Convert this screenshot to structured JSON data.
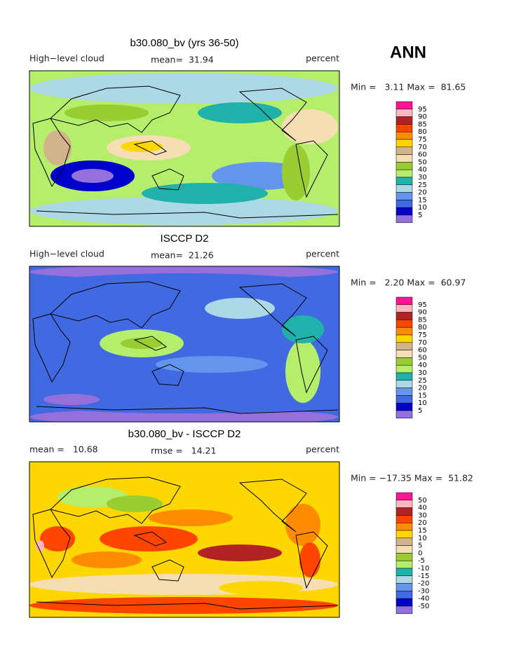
{
  "header": {
    "season": "ANN"
  },
  "panels": [
    {
      "title": "b30.080_bv (yrs 36-50)",
      "left_label": "High−level cloud",
      "center_label": "mean=  31.94",
      "right_label": "percent",
      "min_max": "Min =   3.11 Max =  81.65",
      "colorbar": {
        "labels": [
          95,
          90,
          85,
          80,
          75,
          70,
          60,
          50,
          40,
          30,
          25,
          20,
          15,
          10,
          5
        ],
        "colors": [
          "#ff1493",
          "#ffb6c1",
          "#b22222",
          "#ff4500",
          "#ff8c00",
          "#ffd700",
          "#d2b48c",
          "#f5deb3",
          "#9acd32",
          "#b4ee6b",
          "#20b2aa",
          "#add8e6",
          "#6495ed",
          "#4169e1",
          "#0000cd",
          "#9370db"
        ]
      }
    },
    {
      "title": "ISCCP D2",
      "left_label": "High−level cloud",
      "center_label": "mean=  21.26",
      "right_label": "percent",
      "min_max": "Min =   2.20 Max =  60.97",
      "colorbar": {
        "labels": [
          95,
          90,
          85,
          80,
          75,
          70,
          60,
          50,
          40,
          30,
          25,
          20,
          15,
          10,
          5
        ],
        "colors": [
          "#ff1493",
          "#ffb6c1",
          "#b22222",
          "#ff4500",
          "#ff8c00",
          "#ffd700",
          "#d2b48c",
          "#f5deb3",
          "#9acd32",
          "#b4ee6b",
          "#20b2aa",
          "#add8e6",
          "#6495ed",
          "#4169e1",
          "#0000cd",
          "#9370db"
        ]
      }
    },
    {
      "title": "b30.080_bv - ISCCP D2",
      "left_label": "mean =   10.68",
      "center_label": "rmse =   14.21",
      "right_label": "percent",
      "min_max": "Min = −17.35 Max =  51.82",
      "colorbar": {
        "labels": [
          50,
          40,
          30,
          20,
          15,
          10,
          5,
          0,
          -5,
          -10,
          -15,
          -20,
          -30,
          -40,
          -50
        ],
        "colors": [
          "#ff1493",
          "#ffb6c1",
          "#b22222",
          "#ff4500",
          "#ff8c00",
          "#ffd700",
          "#d2b48c",
          "#f5deb3",
          "#9acd32",
          "#b4ee6b",
          "#20b2aa",
          "#add8e6",
          "#6495ed",
          "#4169e1",
          "#0000cd",
          "#9370db"
        ]
      }
    }
  ]
}
